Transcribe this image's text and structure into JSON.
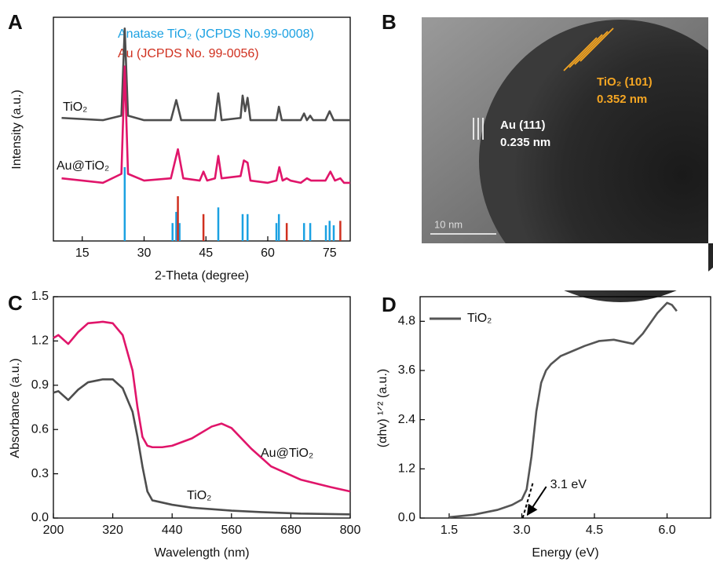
{
  "chart_data": [
    {
      "type": "line",
      "label": "A",
      "xlabel": "2-Theta (degree)",
      "ylabel": "Intensity (a.u.)",
      "xlim": [
        8,
        80
      ],
      "ylim": [
        0,
        100
      ],
      "xticks": [
        15,
        30,
        45,
        60,
        75
      ],
      "series": [
        {
          "name": "TiO₂",
          "color": "#4d4d4d",
          "x": [
            10,
            20,
            24.5,
            25.3,
            26.1,
            30,
            36.5,
            37.8,
            39,
            47.2,
            48.0,
            48.8,
            53.4,
            53.9,
            54.5,
            55.1,
            55.8,
            60,
            62.1,
            62.7,
            63.4,
            68,
            68.8,
            69.5,
            70.3,
            71,
            74,
            75.0,
            76,
            80
          ],
          "values": [
            55,
            54,
            56,
            95,
            56,
            54,
            54,
            63,
            54,
            54,
            66,
            54,
            55,
            65,
            58,
            64,
            54,
            54,
            54,
            60,
            54,
            54,
            57,
            54,
            56,
            54,
            54,
            58,
            54,
            54
          ]
        },
        {
          "name": "Au@TiO₂",
          "color": "#e0156a",
          "x": [
            10,
            20,
            24.5,
            25.3,
            26.1,
            30,
            36.5,
            38.2,
            39.5,
            43.5,
            44.4,
            45.3,
            47.2,
            48.0,
            48.8,
            53.4,
            54.2,
            55.1,
            55.8,
            60,
            62.1,
            62.8,
            63.6,
            64.6,
            65.5,
            68,
            69.5,
            70.5,
            74,
            75.2,
            76.3,
            77.6,
            78.5,
            80
          ],
          "values": [
            28,
            26,
            30,
            78,
            30,
            27,
            28,
            41,
            28,
            27,
            31,
            27,
            28,
            38,
            28,
            29,
            36,
            35,
            27,
            26,
            27,
            33,
            27,
            28,
            27,
            26,
            28,
            27,
            27,
            31,
            27,
            28,
            26,
            26
          ]
        }
      ],
      "references": [
        {
          "name": "Anatase TiO₂ (JCPDS No.99-0008)",
          "color": "#1ba1e2",
          "x": [
            25.3,
            36.9,
            37.8,
            38.6,
            48.0,
            53.9,
            55.1,
            62.1,
            62.7,
            68.8,
            70.3,
            74.1,
            75.0,
            76.0
          ],
          "values": [
            33,
            8,
            13,
            8,
            15,
            12,
            12,
            8,
            12,
            8,
            8,
            7,
            9,
            7
          ]
        },
        {
          "name": "Au (JCPDS No. 99-0056)",
          "color": "#d0301f",
          "x": [
            38.2,
            44.4,
            64.6,
            77.6
          ],
          "values": [
            20,
            12,
            8,
            9
          ]
        }
      ]
    },
    {
      "type": "image",
      "label": "B",
      "annotations": [
        "TiO₂ (101)",
        "0.352 nm",
        "Au (111)",
        "0.235 nm"
      ],
      "scale_bar": "10 nm"
    },
    {
      "type": "line",
      "label": "C",
      "xlabel": "Wavelength (nm)",
      "ylabel": "Absorbance (a.u.)",
      "xlim": [
        200,
        800
      ],
      "ylim": [
        0,
        1.5
      ],
      "xticks": [
        200,
        320,
        440,
        560,
        680,
        800
      ],
      "yticks": [
        {
          "value": 0,
          "label": "0.0"
        },
        0.3,
        0.6,
        0.9,
        1.2,
        1.5
      ],
      "series": [
        {
          "name": "Au@TiO₂",
          "color": "#e0156a",
          "x": [
            200,
            210,
            230,
            250,
            270,
            300,
            320,
            340,
            360,
            370,
            380,
            390,
            400,
            420,
            440,
            480,
            520,
            540,
            560,
            600,
            640,
            700,
            760,
            800
          ],
          "values": [
            1.22,
            1.24,
            1.18,
            1.26,
            1.32,
            1.33,
            1.32,
            1.24,
            1.0,
            0.75,
            0.55,
            0.49,
            0.48,
            0.48,
            0.49,
            0.54,
            0.62,
            0.64,
            0.61,
            0.47,
            0.35,
            0.26,
            0.21,
            0.18
          ]
        },
        {
          "name": "TiO₂",
          "color": "#4d4d4d",
          "x": [
            200,
            210,
            230,
            250,
            270,
            300,
            320,
            340,
            360,
            370,
            380,
            390,
            400,
            440,
            480,
            520,
            560,
            620,
            700,
            800
          ],
          "values": [
            0.85,
            0.86,
            0.8,
            0.87,
            0.92,
            0.94,
            0.94,
            0.88,
            0.72,
            0.55,
            0.35,
            0.18,
            0.12,
            0.09,
            0.07,
            0.06,
            0.05,
            0.04,
            0.03,
            0.025
          ]
        }
      ]
    },
    {
      "type": "line",
      "label": "D",
      "xlabel": "Energy (eV)",
      "ylabel": "(αhv) ¹ᐟ² (a.u.)",
      "xlim": [
        0.9,
        6.9
      ],
      "ylim": [
        0,
        5.4
      ],
      "xticks": [
        1.5,
        {
          "value": 3,
          "label": "3.0"
        },
        4.5,
        {
          "value": 6,
          "label": "6.0"
        }
      ],
      "yticks": [
        {
          "value": 0,
          "label": "0.0"
        },
        1.2,
        2.4,
        3.6,
        4.8
      ],
      "legend": "upper left",
      "annotation": {
        "value": 3.1,
        "label": "3.1 eV"
      },
      "series": [
        {
          "name": "TiO₂",
          "color": "#555555",
          "x": [
            1.5,
            2.0,
            2.5,
            2.8,
            3.0,
            3.1,
            3.2,
            3.3,
            3.4,
            3.5,
            3.6,
            3.8,
            4.0,
            4.3,
            4.6,
            4.9,
            5.1,
            5.3,
            5.5,
            5.8,
            6.0,
            6.1,
            6.2
          ],
          "values": [
            0.02,
            0.08,
            0.2,
            0.32,
            0.45,
            0.7,
            1.5,
            2.6,
            3.3,
            3.6,
            3.75,
            3.95,
            4.05,
            4.2,
            4.32,
            4.35,
            4.3,
            4.25,
            4.5,
            5.0,
            5.25,
            5.2,
            5.05
          ]
        }
      ]
    }
  ]
}
